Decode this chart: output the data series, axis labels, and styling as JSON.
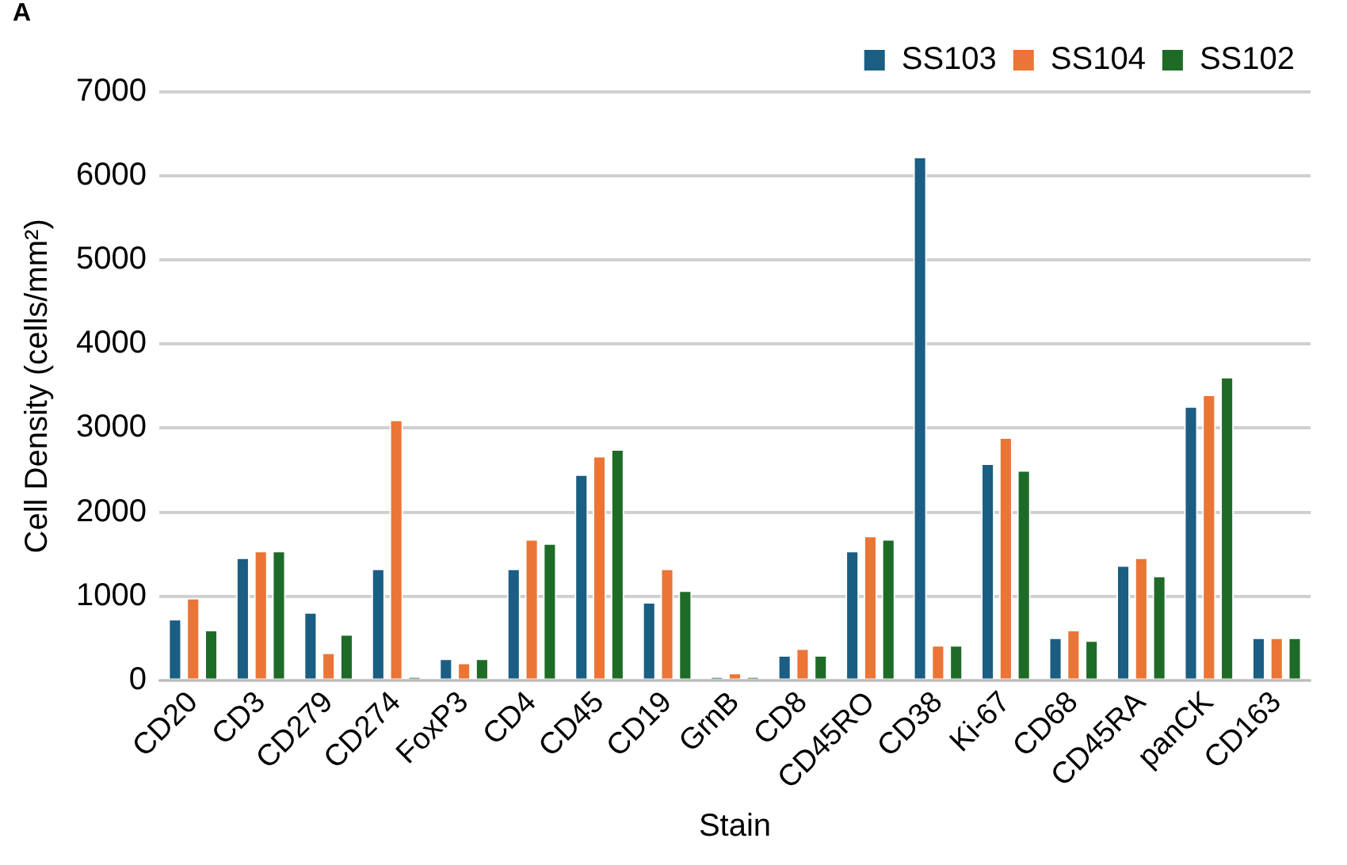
{
  "chart_data": {
    "type": "bar",
    "annotations": [
      "A"
    ],
    "xlabel": "Stain",
    "ylabel": "Cell Density (cells/mm²)",
    "categories": [
      "CD20",
      "CD3",
      "CD279",
      "CD274",
      "FoxP3",
      "CD4",
      "CD45",
      "CD19",
      "GrnB",
      "CD8",
      "CD45RO",
      "CD38",
      "Ki-67",
      "CD68",
      "CD45RA",
      "panCK",
      "CD163"
    ],
    "series": [
      {
        "name": "SS103",
        "color": "#1a5e83",
        "values": [
          730,
          1460,
          810,
          1330,
          260,
          1330,
          2450,
          930,
          40,
          300,
          1540,
          6230,
          2580,
          510,
          1370,
          3260,
          510
        ]
      },
      {
        "name": "SS104",
        "color": "#ea7536",
        "values": [
          980,
          1540,
          330,
          3100,
          210,
          1680,
          2670,
          1330,
          90,
          380,
          1720,
          420,
          2890,
          600,
          1460,
          3400,
          510
        ]
      },
      {
        "name": "SS102",
        "color": "#1e6b28",
        "values": [
          600,
          1540,
          550,
          40,
          260,
          1630,
          2750,
          1070,
          40,
          300,
          1680,
          420,
          2500,
          475,
          1245,
          3610,
          510
        ]
      }
    ],
    "ylim": [
      0,
      7000
    ],
    "yticks": [
      0,
      1000,
      2000,
      3000,
      4000,
      5000,
      6000,
      7000
    ],
    "grid": "y",
    "legend": "top right"
  }
}
